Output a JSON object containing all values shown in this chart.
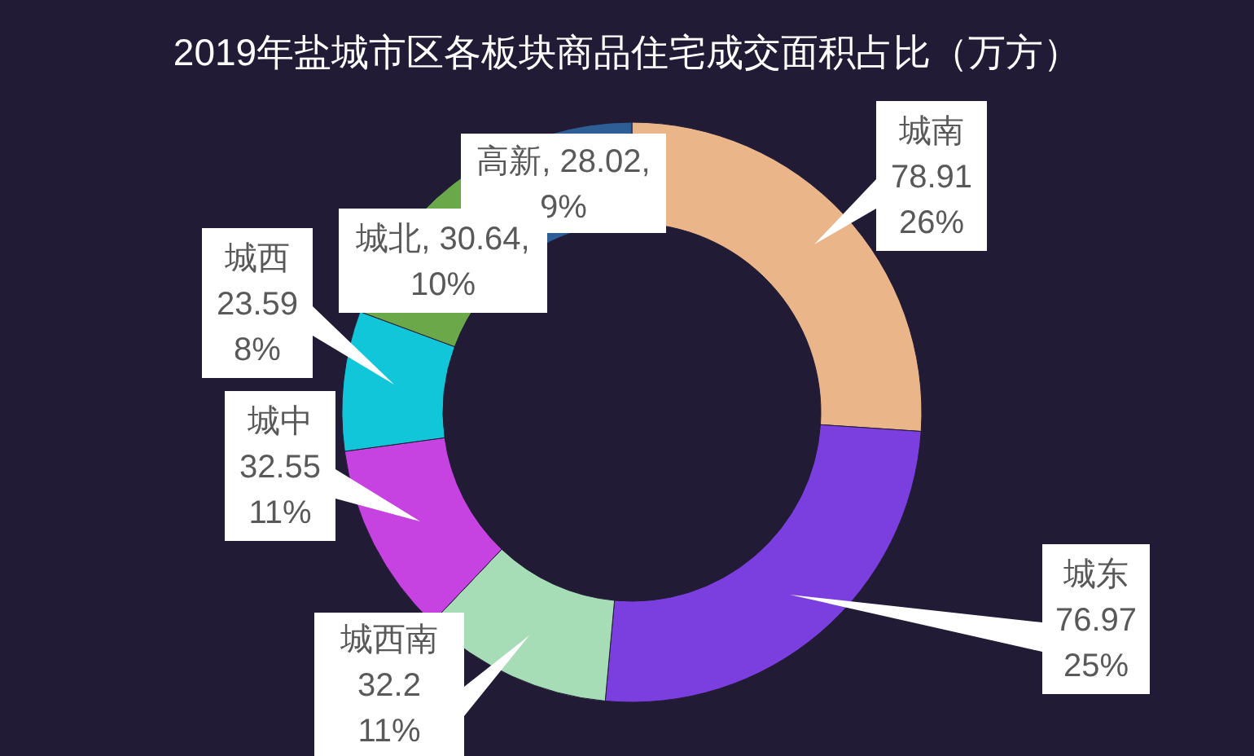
{
  "chart_data": {
    "type": "donut",
    "title": "2019年盐城市区各板块商品住宅成交面积占比（万方）",
    "categories": [
      "城南",
      "城东",
      "城西南",
      "城中",
      "城西",
      "城北",
      "高新"
    ],
    "values": [
      78.91,
      76.97,
      32.2,
      32.55,
      23.59,
      30.64,
      28.02
    ],
    "colors": [
      "#eab589",
      "#7b3fe0",
      "#a6dcb6",
      "#c643e2",
      "#12c6da",
      "#6aa84a",
      "#2d5f96"
    ],
    "value_labels": [
      "78.91\n26%",
      "76.97\n25%",
      "32.2\n11%",
      "32.55\n11%",
      "23.59\n8%",
      ", 30.64,\n10%",
      ", 28.02,\n9%"
    ]
  }
}
